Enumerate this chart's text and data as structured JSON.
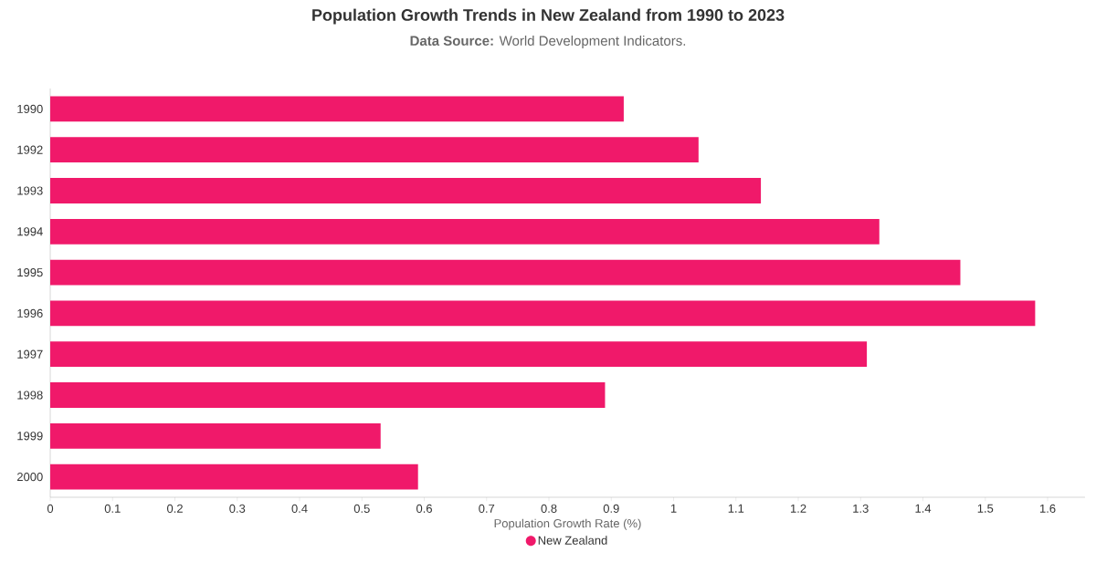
{
  "chart_data": {
    "type": "bar",
    "orientation": "horizontal",
    "title": "Population Growth Trends in New Zealand from 1990 to 2023",
    "subtitle": "**Data Source:** World Development Indicators.",
    "xlabel": "Population Growth Rate (%)",
    "categories": [
      "1990",
      "1992",
      "1993",
      "1994",
      "1995",
      "1996",
      "1997",
      "1998",
      "1999",
      "2000"
    ],
    "series": [
      {
        "name": "New Zealand",
        "color": "#f0196a",
        "values": [
          0.92,
          1.04,
          1.14,
          1.33,
          1.46,
          1.58,
          1.31,
          0.89,
          0.53,
          0.59
        ]
      }
    ],
    "xlim": [
      0,
      1.66
    ],
    "xticks": [
      0,
      0.1,
      0.2,
      0.3,
      0.4,
      0.5,
      0.6,
      0.7,
      0.8,
      0.9,
      1,
      1.1,
      1.2,
      1.3,
      1.4,
      1.5,
      1.6
    ],
    "legend": "bottom"
  }
}
